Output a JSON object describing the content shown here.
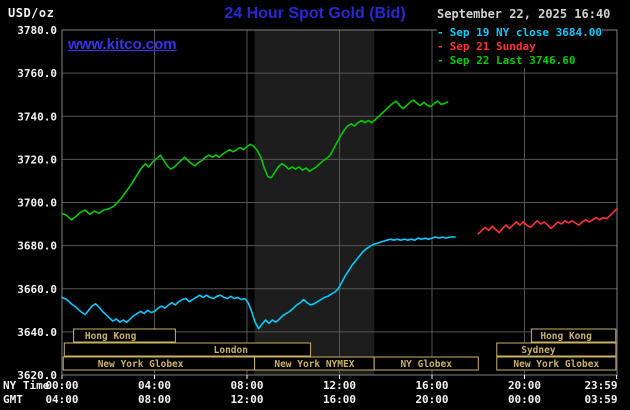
{
  "header": {
    "unit_label": "USD/oz",
    "title": "24 Hour Spot Gold (Bid)",
    "datetime": "September 22, 2025 16:40",
    "watermark": "www.kitco.com"
  },
  "legend": [
    {
      "marker": "-",
      "label": "Sep 19 NY close 3684.00",
      "color": "#00ccff"
    },
    {
      "marker": "-",
      "label": "Sep 21 Sunday",
      "color": "#ff3030"
    },
    {
      "marker": "-",
      "label": "Sep 22 Last 3746.60",
      "color": "#00cc00"
    }
  ],
  "axes": {
    "y_ticks": [
      "3780.0",
      "3760.0",
      "3740.0",
      "3720.0",
      "3700.0",
      "3680.0",
      "3660.0",
      "3640.0",
      "3620.0"
    ],
    "x_tick_hours": [
      0,
      4,
      8,
      12,
      16,
      20,
      23.983
    ],
    "x_rows": [
      {
        "label": "NY Time",
        "ticks": [
          "00:00",
          "04:00",
          "08:00",
          "12:00",
          "16:00",
          "20:00",
          "23:59"
        ]
      },
      {
        "label": "GMT",
        "ticks": [
          "04:00",
          "08:00",
          "12:00",
          "16:00",
          "20:00",
          "00:00",
          "03:59"
        ]
      }
    ]
  },
  "colors": {
    "background": "#000000",
    "grid": "#565656",
    "border": "#808080",
    "axis_text": "#f2f2f2",
    "session": "#cab164",
    "band": "#1d1d1d",
    "title": "#2727d8",
    "watermark": "#3333ee",
    "datetime": "#d0d0d0"
  },
  "chart_data": {
    "type": "line",
    "title": "24 Hour Spot Gold (Bid)",
    "ylabel": "USD/oz",
    "ylim": [
      3620,
      3780
    ],
    "xlim_hours": [
      0,
      24
    ],
    "grid": true,
    "x_unit": "hour (NY Time)",
    "nymex_band_hours": [
      8.33,
      13.5
    ],
    "series": [
      {
        "id": "sep19",
        "name": "Sep 19 NY close 3684.00",
        "color": "#00ccff",
        "points": [
          [
            0,
            3656
          ],
          [
            0.2,
            3655
          ],
          [
            0.4,
            3653
          ],
          [
            0.6,
            3651.5
          ],
          [
            0.8,
            3649.5
          ],
          [
            1,
            3648
          ],
          [
            1.15,
            3650
          ],
          [
            1.3,
            3652
          ],
          [
            1.45,
            3653
          ],
          [
            1.6,
            3651.5
          ],
          [
            1.75,
            3649.5
          ],
          [
            1.9,
            3648
          ],
          [
            2.05,
            3646.5
          ],
          [
            2.2,
            3645
          ],
          [
            2.35,
            3646
          ],
          [
            2.5,
            3644.5
          ],
          [
            2.65,
            3645.5
          ],
          [
            2.8,
            3644.5
          ],
          [
            2.95,
            3646
          ],
          [
            3.1,
            3647.5
          ],
          [
            3.25,
            3648.5
          ],
          [
            3.4,
            3649.5
          ],
          [
            3.55,
            3648.5
          ],
          [
            3.7,
            3650
          ],
          [
            3.85,
            3649
          ],
          [
            4,
            3649.5
          ],
          [
            4.15,
            3651
          ],
          [
            4.3,
            3652
          ],
          [
            4.45,
            3651
          ],
          [
            4.6,
            3652.5
          ],
          [
            4.75,
            3653.5
          ],
          [
            4.9,
            3652.5
          ],
          [
            5.05,
            3654
          ],
          [
            5.2,
            3655
          ],
          [
            5.35,
            3655.5
          ],
          [
            5.5,
            3654
          ],
          [
            5.65,
            3655
          ],
          [
            5.8,
            3656
          ],
          [
            5.95,
            3657
          ],
          [
            6.1,
            3656
          ],
          [
            6.25,
            3657
          ],
          [
            6.4,
            3656
          ],
          [
            6.55,
            3655.5
          ],
          [
            6.7,
            3656.5
          ],
          [
            6.85,
            3657
          ],
          [
            7,
            3656
          ],
          [
            7.15,
            3655.5
          ],
          [
            7.3,
            3656.5
          ],
          [
            7.45,
            3655.5
          ],
          [
            7.6,
            3656
          ],
          [
            7.75,
            3655
          ],
          [
            7.9,
            3655.5
          ],
          [
            8.05,
            3653.5
          ],
          [
            8.2,
            3649.5
          ],
          [
            8.35,
            3644.5
          ],
          [
            8.5,
            3641.5
          ],
          [
            8.65,
            3643.5
          ],
          [
            8.8,
            3645.5
          ],
          [
            8.95,
            3644
          ],
          [
            9.1,
            3645.5
          ],
          [
            9.25,
            3644.5
          ],
          [
            9.4,
            3646
          ],
          [
            9.55,
            3647.5
          ],
          [
            9.7,
            3648.5
          ],
          [
            9.85,
            3649.5
          ],
          [
            10,
            3651
          ],
          [
            10.15,
            3652.5
          ],
          [
            10.3,
            3653.5
          ],
          [
            10.45,
            3655
          ],
          [
            10.6,
            3653.5
          ],
          [
            10.75,
            3652.5
          ],
          [
            10.9,
            3653
          ],
          [
            11.05,
            3654
          ],
          [
            11.2,
            3655
          ],
          [
            11.35,
            3656
          ],
          [
            11.5,
            3656.5
          ],
          [
            11.65,
            3657.5
          ],
          [
            11.8,
            3658.5
          ],
          [
            11.95,
            3660
          ],
          [
            12.1,
            3663
          ],
          [
            12.25,
            3666
          ],
          [
            12.4,
            3668.5
          ],
          [
            12.55,
            3671
          ],
          [
            12.7,
            3673
          ],
          [
            12.85,
            3675
          ],
          [
            13,
            3677
          ],
          [
            13.15,
            3678.5
          ],
          [
            13.3,
            3679.5
          ],
          [
            13.45,
            3680.5
          ],
          [
            13.6,
            3681
          ],
          [
            13.75,
            3681.5
          ],
          [
            13.9,
            3682
          ],
          [
            14.05,
            3682.5
          ],
          [
            14.2,
            3683
          ],
          [
            14.35,
            3682.5
          ],
          [
            14.5,
            3683
          ],
          [
            14.65,
            3682.5
          ],
          [
            14.8,
            3683
          ],
          [
            14.95,
            3682.5
          ],
          [
            15.1,
            3683
          ],
          [
            15.25,
            3682.5
          ],
          [
            15.4,
            3683.5
          ],
          [
            15.55,
            3683
          ],
          [
            15.7,
            3683.5
          ],
          [
            15.85,
            3683
          ],
          [
            16,
            3683.5
          ],
          [
            16.15,
            3684
          ],
          [
            16.3,
            3683.5
          ],
          [
            16.45,
            3684
          ],
          [
            16.6,
            3683.5
          ],
          [
            16.8,
            3684
          ],
          [
            17,
            3684
          ]
        ]
      },
      {
        "id": "sep21",
        "name": "Sep 21 Sunday",
        "color": "#ff3030",
        "points": [
          [
            18,
            3685.5
          ],
          [
            18.15,
            3687
          ],
          [
            18.3,
            3688.5
          ],
          [
            18.45,
            3687
          ],
          [
            18.6,
            3689
          ],
          [
            18.75,
            3687.5
          ],
          [
            18.9,
            3686
          ],
          [
            19.05,
            3688
          ],
          [
            19.2,
            3689.5
          ],
          [
            19.35,
            3688
          ],
          [
            19.5,
            3689.5
          ],
          [
            19.65,
            3691
          ],
          [
            19.8,
            3689.5
          ],
          [
            19.95,
            3691
          ],
          [
            20.1,
            3689.5
          ],
          [
            20.25,
            3688.5
          ],
          [
            20.4,
            3690
          ],
          [
            20.55,
            3691.5
          ],
          [
            20.7,
            3690
          ],
          [
            20.85,
            3691
          ],
          [
            21,
            3689.5
          ],
          [
            21.15,
            3688
          ],
          [
            21.3,
            3689.5
          ],
          [
            21.45,
            3691
          ],
          [
            21.6,
            3690
          ],
          [
            21.75,
            3691.5
          ],
          [
            21.9,
            3690.5
          ],
          [
            22.05,
            3691.5
          ],
          [
            22.2,
            3690.5
          ],
          [
            22.35,
            3689.5
          ],
          [
            22.5,
            3691
          ],
          [
            22.65,
            3692
          ],
          [
            22.8,
            3691
          ],
          [
            22.95,
            3692
          ],
          [
            23.1,
            3693
          ],
          [
            23.25,
            3692
          ],
          [
            23.4,
            3693
          ],
          [
            23.55,
            3692.5
          ],
          [
            23.7,
            3694
          ],
          [
            23.85,
            3695.5
          ],
          [
            23.98,
            3697
          ]
        ]
      },
      {
        "id": "sep22",
        "name": "Sep 22 Last 3746.60",
        "color": "#00cc00",
        "points": [
          [
            0,
            3695
          ],
          [
            0.2,
            3694
          ],
          [
            0.4,
            3692
          ],
          [
            0.6,
            3693.5
          ],
          [
            0.8,
            3695.5
          ],
          [
            1,
            3696.5
          ],
          [
            1.2,
            3694.5
          ],
          [
            1.4,
            3696
          ],
          [
            1.6,
            3695
          ],
          [
            1.8,
            3696.5
          ],
          [
            2,
            3697
          ],
          [
            2.2,
            3698
          ],
          [
            2.4,
            3700
          ],
          [
            2.6,
            3702.5
          ],
          [
            2.8,
            3705.5
          ],
          [
            3,
            3708.5
          ],
          [
            3.2,
            3712
          ],
          [
            3.4,
            3715.5
          ],
          [
            3.6,
            3718
          ],
          [
            3.75,
            3716.5
          ],
          [
            3.9,
            3718.5
          ],
          [
            4.1,
            3720.5
          ],
          [
            4.25,
            3722
          ],
          [
            4.4,
            3719.5
          ],
          [
            4.55,
            3717
          ],
          [
            4.7,
            3715.5
          ],
          [
            4.85,
            3716.5
          ],
          [
            5,
            3718
          ],
          [
            5.15,
            3719.5
          ],
          [
            5.3,
            3721
          ],
          [
            5.45,
            3719.5
          ],
          [
            5.6,
            3718
          ],
          [
            5.75,
            3717
          ],
          [
            5.9,
            3718.5
          ],
          [
            6.05,
            3719.5
          ],
          [
            6.2,
            3721
          ],
          [
            6.35,
            3722
          ],
          [
            6.5,
            3721
          ],
          [
            6.65,
            3722
          ],
          [
            6.8,
            3721
          ],
          [
            6.95,
            3722.5
          ],
          [
            7.1,
            3723.5
          ],
          [
            7.25,
            3724.5
          ],
          [
            7.4,
            3723.5
          ],
          [
            7.55,
            3724.5
          ],
          [
            7.7,
            3725.5
          ],
          [
            7.85,
            3724.5
          ],
          [
            8,
            3726
          ],
          [
            8.15,
            3727
          ],
          [
            8.3,
            3726
          ],
          [
            8.45,
            3724
          ],
          [
            8.6,
            3721
          ],
          [
            8.75,
            3716
          ],
          [
            8.9,
            3712
          ],
          [
            9.05,
            3711.5
          ],
          [
            9.2,
            3714
          ],
          [
            9.35,
            3716.5
          ],
          [
            9.5,
            3718
          ],
          [
            9.65,
            3717
          ],
          [
            9.8,
            3715.5
          ],
          [
            9.95,
            3716.5
          ],
          [
            10.1,
            3715.5
          ],
          [
            10.25,
            3716.5
          ],
          [
            10.4,
            3715
          ],
          [
            10.55,
            3716
          ],
          [
            10.7,
            3714.5
          ],
          [
            10.85,
            3715.5
          ],
          [
            11,
            3716.5
          ],
          [
            11.15,
            3718
          ],
          [
            11.3,
            3719.5
          ],
          [
            11.45,
            3720.5
          ],
          [
            11.6,
            3722
          ],
          [
            11.75,
            3725
          ],
          [
            11.9,
            3728
          ],
          [
            12.05,
            3731
          ],
          [
            12.2,
            3733.5
          ],
          [
            12.35,
            3735.5
          ],
          [
            12.5,
            3736.5
          ],
          [
            12.65,
            3735.5
          ],
          [
            12.8,
            3737
          ],
          [
            12.95,
            3738
          ],
          [
            13.1,
            3737
          ],
          [
            13.25,
            3738
          ],
          [
            13.4,
            3737
          ],
          [
            13.55,
            3738.5
          ],
          [
            13.7,
            3740
          ],
          [
            13.85,
            3741.5
          ],
          [
            14,
            3743
          ],
          [
            14.15,
            3744.5
          ],
          [
            14.3,
            3746
          ],
          [
            14.45,
            3747
          ],
          [
            14.6,
            3745
          ],
          [
            14.75,
            3743.5
          ],
          [
            14.9,
            3745
          ],
          [
            15.05,
            3746.5
          ],
          [
            15.2,
            3747.5
          ],
          [
            15.35,
            3746
          ],
          [
            15.5,
            3745
          ],
          [
            15.65,
            3746.5
          ],
          [
            15.8,
            3745
          ],
          [
            15.95,
            3744.5
          ],
          [
            16.1,
            3746
          ],
          [
            16.25,
            3747
          ],
          [
            16.4,
            3745.5
          ],
          [
            16.55,
            3746
          ],
          [
            16.67,
            3746.6
          ]
        ]
      }
    ],
    "sessions": [
      {
        "label": "Hong Kong",
        "row": 0,
        "start": 0.5,
        "end": 4.9,
        "label_h": 2.1
      },
      {
        "label": "Hong Kong",
        "row": 0,
        "start": 20.3,
        "end": 23.95,
        "label_h": 21.8
      },
      {
        "label": "London",
        "row": 1,
        "start": 0.1,
        "end": 10.75,
        "label_h": 7.3
      },
      {
        "label": "Sydney",
        "row": 1,
        "start": 18.8,
        "end": 23.95,
        "label_h": 20.6
      },
      {
        "label": "New York Globex",
        "row": 2,
        "start": 0.05,
        "end": 8.33,
        "label_h": 3.4
      },
      {
        "label": "New York NYMEX",
        "row": 2,
        "start": 8.33,
        "end": 13.5
      },
      {
        "label": "NY Globex",
        "row": 2,
        "start": 13.5,
        "end": 18.0
      },
      {
        "label": "New York Globex",
        "row": 2,
        "start": 18.8,
        "end": 23.95
      }
    ]
  }
}
